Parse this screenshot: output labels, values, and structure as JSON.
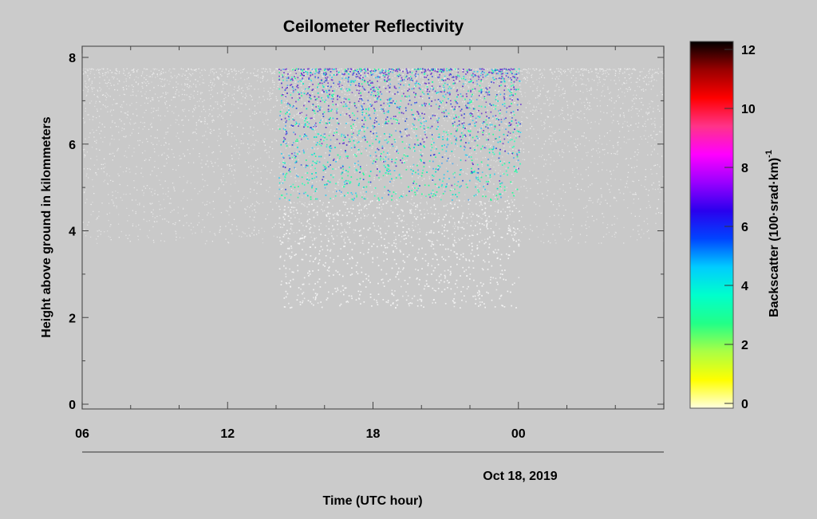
{
  "chart_data": {
    "type": "heatmap",
    "title": "Ceilometer Reflectivity",
    "xlabel": "Time (UTC hour)",
    "date_label": "Oct 18, 2019",
    "ylabel": "Height above ground in kilommeters",
    "colorbar_label": "Backscatter (100·srad·km)",
    "colorbar_label_exponent": "-1",
    "x_ticks": [
      "06",
      "12",
      "18",
      "00"
    ],
    "x_tick_hours": [
      6,
      12,
      18,
      24
    ],
    "xlim_hours": [
      6,
      30
    ],
    "y_ticks": [
      "0",
      "2",
      "4",
      "6",
      "8"
    ],
    "ylim": [
      0,
      8
    ],
    "colorbar_ticks": [
      "0",
      "2",
      "4",
      "6",
      "8",
      "10",
      "12"
    ],
    "colorbar_range": [
      0,
      12
    ],
    "colorscale": [
      "#ffffe0",
      "#ffff00",
      "#aaff44",
      "#22ff88",
      "#00ffcc",
      "#00ccff",
      "#0044ff",
      "#2a00ee",
      "#9900ff",
      "#ff00ff",
      "#ff3388",
      "#ff0000",
      "#990000",
      "#000000"
    ],
    "signal_window_hours": [
      14.1,
      24.1
    ],
    "peak_backscatter_max_height_km": 7.75,
    "grid": false
  }
}
